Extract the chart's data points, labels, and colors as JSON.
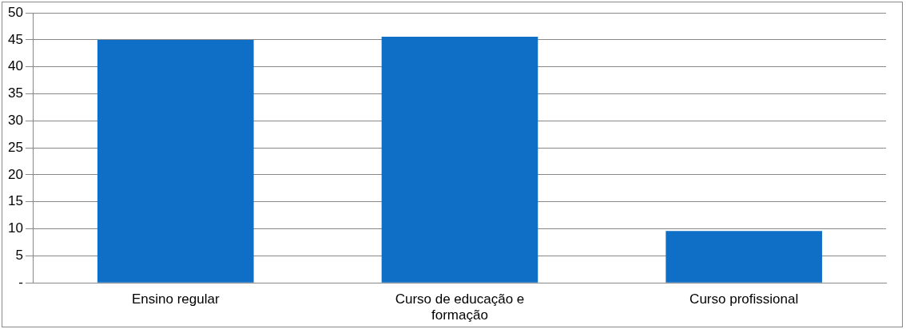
{
  "chart_data": {
    "type": "bar",
    "categories": [
      "Ensino regular",
      "Curso de educação e formação",
      "Curso profissional"
    ],
    "values": [
      45,
      45.6,
      9.6
    ],
    "color": "#0f6fc6",
    "ylim": [
      0,
      50
    ],
    "yticks": [
      {
        "value": 0,
        "label": "-"
      },
      5,
      10,
      15,
      20,
      25,
      30,
      35,
      40,
      45,
      50
    ],
    "grid": "y"
  }
}
